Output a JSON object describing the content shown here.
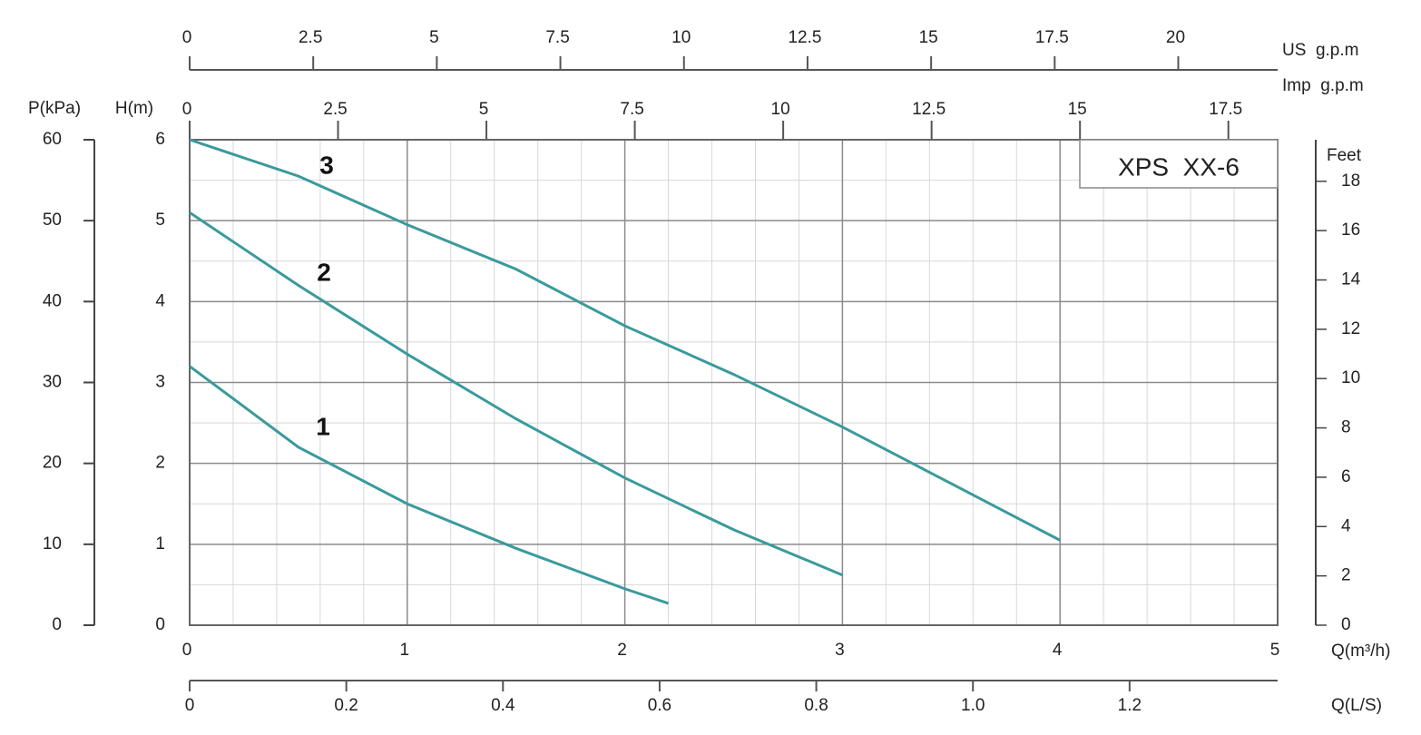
{
  "chart_data": {
    "type": "line",
    "xlabel": "Q(m³/h)",
    "ylabel": "H(m)",
    "xlim": [
      0,
      5
    ],
    "xticks": [
      0,
      1,
      2,
      3,
      4,
      5
    ],
    "ylim": [
      0,
      6
    ],
    "yticks": [
      0,
      1,
      2,
      3,
      4,
      5,
      6
    ],
    "grid": true,
    "annotation": "XPS  XX-6",
    "series": [
      {
        "name": "1",
        "color": "#3a9a9c",
        "x": [
          0,
          0.5,
          1,
          1.5,
          2,
          2.2
        ],
        "values": [
          3.2,
          2.2,
          1.5,
          0.95,
          0.45,
          0.27
        ]
      },
      {
        "name": "2",
        "color": "#3a9a9c",
        "x": [
          0,
          0.5,
          1,
          1.5,
          2,
          2.5,
          3
        ],
        "values": [
          5.1,
          4.2,
          3.35,
          2.55,
          1.82,
          1.18,
          0.62
        ]
      },
      {
        "name": "3",
        "color": "#3a9a9c",
        "x": [
          0,
          0.5,
          1,
          1.5,
          2,
          2.5,
          3,
          3.5,
          4
        ],
        "values": [
          6,
          5.55,
          4.95,
          4.4,
          3.7,
          3.1,
          2.45,
          1.75,
          1.05
        ]
      }
    ],
    "axes": {
      "pressure": {
        "label": "P(kPa)",
        "lim": [
          0,
          60
        ],
        "ticks": [
          0,
          10,
          20,
          30,
          40,
          50,
          60
        ]
      },
      "feet": {
        "label": "Feet",
        "lim": [
          0,
          19.685
        ],
        "ticks": [
          0,
          2,
          4,
          6,
          8,
          10,
          12,
          14,
          16,
          18
        ]
      },
      "us_gpm": {
        "label": "US  g.p.m",
        "lim": [
          0,
          22.01
        ],
        "ticks": [
          0,
          2.5,
          5,
          7.5,
          10,
          12.5,
          15,
          17.5,
          20
        ]
      },
      "imp_gpm": {
        "label": "Imp  g.p.m",
        "lim": [
          0,
          18.33
        ],
        "ticks": [
          0,
          2.5,
          5,
          7.5,
          10,
          12.5,
          15,
          17.5
        ]
      },
      "ls": {
        "label": "Q(L/S)",
        "lim": [
          0,
          1.389
        ],
        "ticks": [
          0,
          0.2,
          0.4,
          0.6,
          0.8,
          {
            "value": 1,
            "label": "1.0"
          },
          1.2
        ]
      }
    }
  }
}
